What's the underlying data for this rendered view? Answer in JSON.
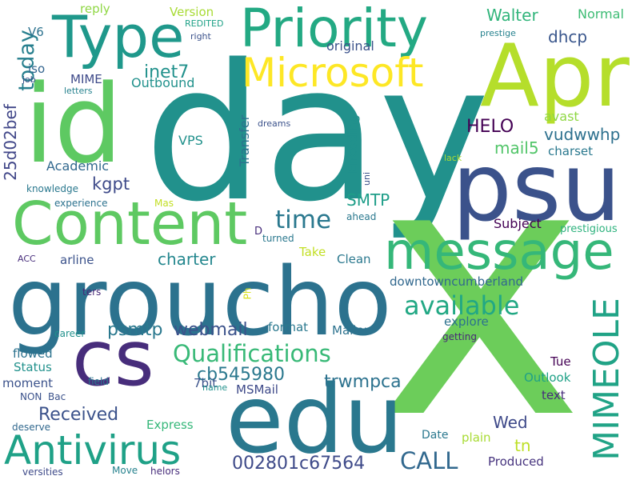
{
  "words": [
    {
      "text": "day",
      "color": "#21918c",
      "orientation": "horizontal"
    },
    {
      "text": "x",
      "color": "#6ccd5a",
      "orientation": "horizontal"
    },
    {
      "text": "groucho",
      "color": "#2c728e",
      "orientation": "horizontal"
    },
    {
      "text": "psu",
      "color": "#3b528b",
      "orientation": "horizontal"
    },
    {
      "text": "id",
      "color": "#5ec962",
      "orientation": "horizontal"
    },
    {
      "text": "Apr",
      "color": "#b5de2b",
      "orientation": "horizontal"
    },
    {
      "text": "edu",
      "color": "#2a788e",
      "orientation": "horizontal"
    },
    {
      "text": "Content",
      "color": "#5ec962",
      "orientation": "horizontal"
    },
    {
      "text": "cs",
      "color": "#472d7b",
      "orientation": "horizontal"
    },
    {
      "text": "Priority",
      "color": "#23a983",
      "orientation": "horizontal"
    },
    {
      "text": "Type",
      "color": "#1f988b",
      "orientation": "horizontal"
    },
    {
      "text": "message",
      "color": "#35b779",
      "orientation": "horizontal"
    },
    {
      "text": "Microsoft",
      "color": "#fde725",
      "orientation": "horizontal"
    },
    {
      "text": "Antivirus",
      "color": "#1fa187",
      "orientation": "horizontal"
    },
    {
      "text": "MIMEOLE",
      "color": "#20a386",
      "orientation": "vertical"
    },
    {
      "text": "Qualifications",
      "color": "#38b977",
      "orientation": "horizontal"
    },
    {
      "text": "available",
      "color": "#22a884",
      "orientation": "horizontal"
    },
    {
      "text": "today",
      "color": "#277f8e",
      "orientation": "vertical"
    },
    {
      "text": "time",
      "color": "#2a788e",
      "orientation": "horizontal"
    },
    {
      "text": "CALL",
      "color": "#31688e",
      "orientation": "horizontal"
    },
    {
      "text": "002801c67564",
      "color": "#3e4a89",
      "orientation": "horizontal"
    },
    {
      "text": "Received",
      "color": "#3b528b",
      "orientation": "horizontal"
    },
    {
      "text": "trwmpca",
      "color": "#2c728e",
      "orientation": "horizontal"
    },
    {
      "text": "webmail",
      "color": "#3b528b",
      "orientation": "horizontal"
    },
    {
      "text": "psmtp",
      "color": "#2a788e",
      "orientation": "horizontal"
    },
    {
      "text": "cb545980",
      "color": "#2a788e",
      "orientation": "horizontal"
    },
    {
      "text": "charter",
      "color": "#24878e",
      "orientation": "horizontal"
    },
    {
      "text": "Walter",
      "color": "#31b57b",
      "orientation": "horizontal"
    },
    {
      "text": "inet7",
      "color": "#21918c",
      "orientation": "horizontal"
    },
    {
      "text": "dhcp",
      "color": "#39568c",
      "orientation": "horizontal"
    },
    {
      "text": "HELO",
      "color": "#440154",
      "orientation": "horizontal"
    },
    {
      "text": "vudwwhp",
      "color": "#2d708e",
      "orientation": "horizontal"
    },
    {
      "text": "mail5",
      "color": "#52c569",
      "orientation": "horizontal"
    },
    {
      "text": "kgpt",
      "color": "#3e4a89",
      "orientation": "horizontal"
    },
    {
      "text": "25d02bef",
      "color": "#404688",
      "orientation": "vertical"
    },
    {
      "text": "SMTP",
      "color": "#1f9e89",
      "orientation": "horizontal"
    },
    {
      "text": "Wed",
      "color": "#3e4989",
      "orientation": "horizontal"
    },
    {
      "text": "tn",
      "color": "#bddf26",
      "orientation": "horizontal"
    },
    {
      "text": "Normal",
      "color": "#3dbc74",
      "orientation": "horizontal"
    },
    {
      "text": "Version",
      "color": "#a8db34",
      "orientation": "horizontal"
    },
    {
      "text": "reply",
      "color": "#8fd744",
      "orientation": "horizontal"
    },
    {
      "text": "V6",
      "color": "#2c728e",
      "orientation": "horizontal"
    },
    {
      "text": "original",
      "color": "#3b528b",
      "orientation": "horizontal"
    },
    {
      "text": "MIME",
      "color": "#3e4a89",
      "orientation": "horizontal"
    },
    {
      "text": "Outbound",
      "color": "#21918c",
      "orientation": "horizontal"
    },
    {
      "text": "iso",
      "color": "#32648e",
      "orientation": "horizontal"
    },
    {
      "text": "VPS",
      "color": "#21918c",
      "orientation": "horizontal"
    },
    {
      "text": "Academic",
      "color": "#31688e",
      "orientation": "horizontal"
    },
    {
      "text": "Transfer",
      "color": "#2c728e",
      "orientation": "vertical"
    },
    {
      "text": "Encoding",
      "color": "#21918c",
      "orientation": "vertical"
    },
    {
      "text": "charset",
      "color": "#2a788e",
      "orientation": "horizontal"
    },
    {
      "text": "avast",
      "color": "#8fd744",
      "orientation": "horizontal"
    },
    {
      "text": "Subject",
      "color": "#440154",
      "orientation": "horizontal"
    },
    {
      "text": "prestigious",
      "color": "#2db27d",
      "orientation": "horizontal"
    },
    {
      "text": "downtowncumberland",
      "color": "#31688e",
      "orientation": "horizontal"
    },
    {
      "text": "arline",
      "color": "#3b528b",
      "orientation": "horizontal"
    },
    {
      "text": "Clean",
      "color": "#2a788e",
      "orientation": "horizontal"
    },
    {
      "text": "Take",
      "color": "#c2df23",
      "orientation": "horizontal"
    },
    {
      "text": "format",
      "color": "#2a788e",
      "orientation": "horizontal"
    },
    {
      "text": "Mailer",
      "color": "#2c728e",
      "orientation": "horizontal"
    },
    {
      "text": "explore",
      "color": "#2c728e",
      "orientation": "horizontal"
    },
    {
      "text": "flowed",
      "color": "#2c728e",
      "orientation": "horizontal"
    },
    {
      "text": "Status",
      "color": "#21918c",
      "orientation": "horizontal"
    },
    {
      "text": "moment",
      "color": "#3b528b",
      "orientation": "horizontal"
    },
    {
      "text": "7bit",
      "color": "#3b528b",
      "orientation": "horizontal"
    },
    {
      "text": "MSMail",
      "color": "#3e4a89",
      "orientation": "horizontal"
    },
    {
      "text": "Express",
      "color": "#35b779",
      "orientation": "horizontal"
    },
    {
      "text": "Outlook",
      "color": "#1fa187",
      "orientation": "horizontal"
    },
    {
      "text": "Tue",
      "color": "#440154",
      "orientation": "horizontal"
    },
    {
      "text": "text",
      "color": "#472d7b",
      "orientation": "horizontal"
    },
    {
      "text": "Date",
      "color": "#2a788e",
      "orientation": "horizontal"
    },
    {
      "text": "plain",
      "color": "#a8db34",
      "orientation": "horizontal"
    },
    {
      "text": "Produced",
      "color": "#46337e",
      "orientation": "horizontal"
    },
    {
      "text": "knowledge",
      "color": "#2a788e",
      "orientation": "horizontal"
    },
    {
      "text": "experience",
      "color": "#2c728e",
      "orientation": "horizontal"
    },
    {
      "text": "Mas",
      "color": "#c2df23",
      "orientation": "horizontal"
    },
    {
      "text": "ahead",
      "color": "#2a788e",
      "orientation": "horizontal"
    },
    {
      "text": "D",
      "color": "#472d7b",
      "orientation": "horizontal"
    },
    {
      "text": "turned",
      "color": "#2a788e",
      "orientation": "horizontal"
    },
    {
      "text": "ACC",
      "color": "#472d7b",
      "orientation": "horizontal"
    },
    {
      "text": "ters",
      "color": "#482878",
      "orientation": "horizontal"
    },
    {
      "text": "Ph",
      "color": "#d8e219",
      "orientation": "vertical"
    },
    {
      "text": "career",
      "color": "#21918c",
      "orientation": "horizontal"
    },
    {
      "text": "getting",
      "color": "#482878",
      "orientation": "horizontal"
    },
    {
      "text": "field",
      "color": "#2a788e",
      "orientation": "horizontal"
    },
    {
      "text": "name",
      "color": "#21918c",
      "orientation": "horizontal"
    },
    {
      "text": "NON",
      "color": "#3b528b",
      "orientation": "horizontal"
    },
    {
      "text": "Bac",
      "color": "#3b528b",
      "orientation": "horizontal"
    },
    {
      "text": "deserve",
      "color": "#31688e",
      "orientation": "horizontal"
    },
    {
      "text": "versities",
      "color": "#3e4a89",
      "orientation": "horizontal"
    },
    {
      "text": "Move",
      "color": "#26828e",
      "orientation": "horizontal"
    },
    {
      "text": "helors",
      "color": "#472d7b",
      "orientation": "horizontal"
    },
    {
      "text": "job",
      "color": "#3b528b",
      "orientation": "horizontal"
    },
    {
      "text": "letters",
      "color": "#26828e",
      "orientation": "horizontal"
    },
    {
      "text": "REDITED",
      "color": "#1fa187",
      "orientation": "horizontal"
    },
    {
      "text": "right",
      "color": "#3b528b",
      "orientation": "horizontal"
    },
    {
      "text": "prestige",
      "color": "#26828e",
      "orientation": "horizontal"
    },
    {
      "text": "dreams",
      "color": "#3b528b",
      "orientation": "horizontal"
    },
    {
      "text": "uni",
      "color": "#3b528b",
      "orientation": "vertical"
    },
    {
      "text": "lack",
      "color": "#a8db34",
      "orientation": "horizontal"
    }
  ]
}
